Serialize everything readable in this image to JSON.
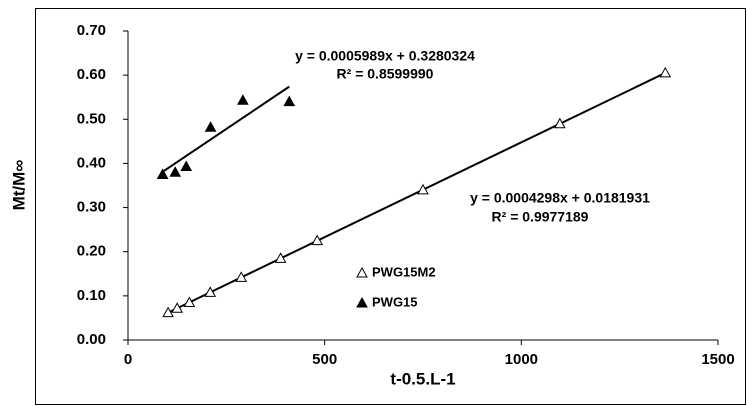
{
  "chart_data": {
    "type": "scatter",
    "x_label": "t-0.5.L-1",
    "y_label": "Mt/M∞",
    "series": [
      {
        "name": "PWG15M2",
        "marker": "open-triangle",
        "color": "#000000",
        "x": [
          102,
          125,
          156,
          209,
          288,
          388,
          481,
          750,
          1098,
          1366
        ],
        "values": [
          0.062,
          0.072,
          0.085,
          0.108,
          0.142,
          0.185,
          0.225,
          0.34,
          0.49,
          0.605
        ],
        "trendline": {
          "x": [
            102,
            1366
          ],
          "y": [
            0.062,
            0.605
          ]
        },
        "annotations": [
          "y = 0.0004298x + 0.0181931",
          "R² = 0.9977189"
        ]
      },
      {
        "name": "PWG15",
        "marker": "filled-triangle",
        "color": "#000000",
        "x": [
          88,
          120,
          148,
          210,
          292,
          410
        ],
        "values": [
          0.375,
          0.38,
          0.393,
          0.482,
          0.543,
          0.54
        ],
        "trendline": {
          "x": [
            88,
            410
          ],
          "y": [
            0.381,
            0.574
          ]
        },
        "annotations": [
          "y = 0.0005989x + 0.3280324",
          "R² = 0.8599990"
        ]
      }
    ],
    "xlim": [
      0,
      1500
    ],
    "xticks": [
      0,
      500,
      1000,
      1500
    ],
    "ylim": [
      0,
      0.7
    ],
    "yticks": [
      {
        "value": 0,
        "label": "0.00"
      },
      {
        "value": 0.1,
        "label": "0.10"
      },
      {
        "value": 0.2,
        "label": "0.20"
      },
      {
        "value": 0.3,
        "label": "0.30"
      },
      {
        "value": 0.4,
        "label": "0.40"
      },
      {
        "value": 0.5,
        "label": "0.50"
      },
      {
        "value": 0.6,
        "label": "0.60"
      },
      {
        "value": 0.7,
        "label": "0.70"
      }
    ],
    "grid": false
  }
}
